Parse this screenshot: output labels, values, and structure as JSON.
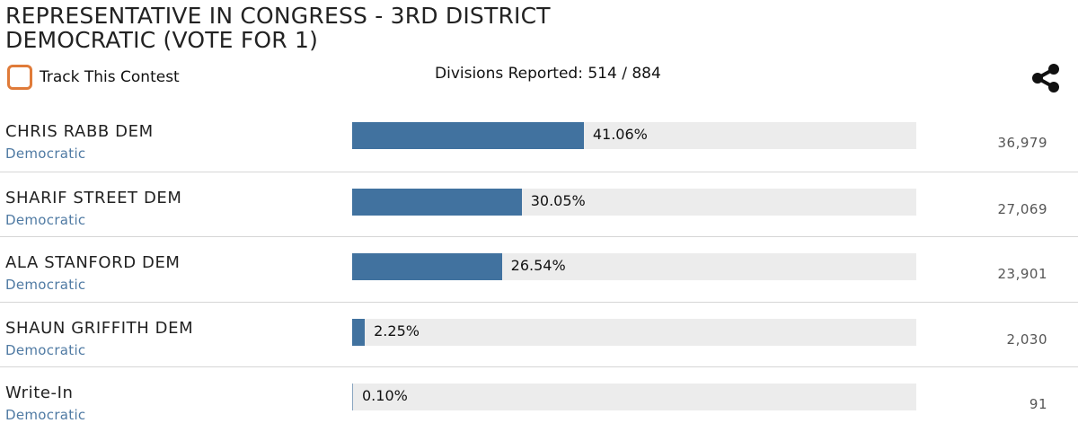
{
  "contest": {
    "title_line1": "REPRESENTATIVE IN CONGRESS - 3RD DISTRICT",
    "title_line2": "DEMOCRATIC (VOTE FOR 1)",
    "track_label": "Track This Contest",
    "divisions_reported": "Divisions Reported: 514 / 884",
    "share_icon": "share-icon"
  },
  "colors": {
    "bar_fill": "#41729f",
    "bar_track": "#ececec",
    "party_text": "#4f7aa3",
    "checkbox_border": "#e07b39"
  },
  "candidates": [
    {
      "name": "CHRIS RABB DEM",
      "party": "Democratic",
      "percent_label": "41.06%",
      "percent": 41.06,
      "votes": "36,979"
    },
    {
      "name": "SHARIF STREET DEM",
      "party": "Democratic",
      "percent_label": "30.05%",
      "percent": 30.05,
      "votes": "27,069"
    },
    {
      "name": "ALA STANFORD DEM",
      "party": "Democratic",
      "percent_label": "26.54%",
      "percent": 26.54,
      "votes": "23,901"
    },
    {
      "name": "SHAUN GRIFFITH DEM",
      "party": "Democratic",
      "percent_label": "2.25%",
      "percent": 2.25,
      "votes": "2,030"
    },
    {
      "name": "Write-In",
      "party": "Democratic",
      "percent_label": "0.10%",
      "percent": 0.1,
      "votes": "91"
    }
  ]
}
